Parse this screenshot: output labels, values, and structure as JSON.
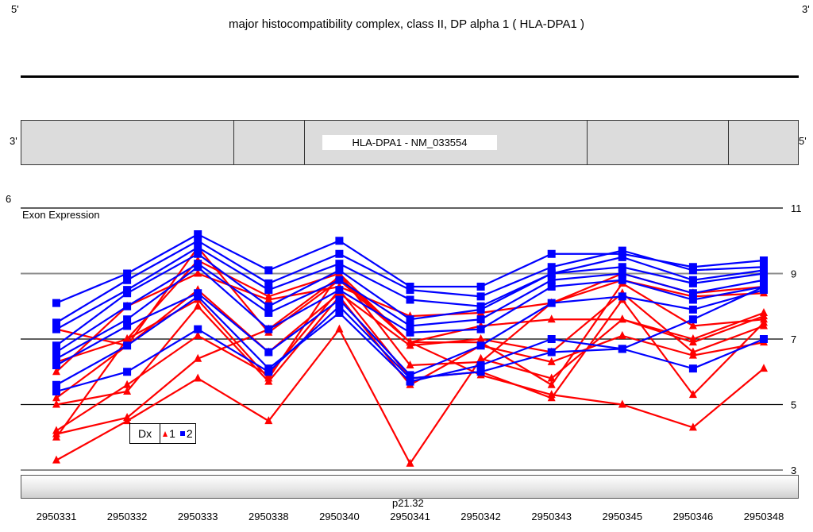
{
  "page": {
    "corner_left": "5'",
    "corner_right": "3'",
    "gene_title": "major histocompatibility complex, class II, DP alpha 1  ( HLA-DPA1 )",
    "transcript_label": "HLA-DPA1 - NM_033554",
    "strand_left": "3'",
    "strand_right": "5'",
    "band_label": "p21.32"
  },
  "chart_data": {
    "type": "line",
    "ylabel": "Exon Expression",
    "left_axis_label": "6",
    "ylim": [
      3,
      11
    ],
    "yticks": [
      3,
      5,
      7,
      9,
      11
    ],
    "grid": true,
    "legend": {
      "title": "Dx",
      "placement": "bottom-left",
      "entries": [
        "1",
        "2"
      ]
    },
    "categories": [
      "2950331",
      "2950332",
      "2950333",
      "2950338",
      "2950340",
      "2950341",
      "2950342",
      "2950343",
      "2950345",
      "2950346",
      "2950348"
    ],
    "series": [
      {
        "name": "1",
        "color": "#ff0000",
        "marker": "triangle",
        "values": [
          7.3,
          6.8,
          9.8,
          7.2,
          8.8,
          6.9,
          6.9,
          5.6,
          8.7,
          7.4,
          7.6
        ]
      },
      {
        "name": "1",
        "color": "#ff0000",
        "marker": "triangle",
        "values": [
          6.3,
          7.0,
          9.4,
          8.3,
          9.0,
          6.9,
          7.4,
          7.6,
          7.6,
          7.0,
          7.8
        ]
      },
      {
        "name": "1",
        "color": "#ff0000",
        "marker": "triangle",
        "values": [
          6.0,
          8.0,
          9.0,
          8.2,
          8.6,
          7.7,
          7.8,
          8.1,
          9.0,
          8.4,
          8.6
        ]
      },
      {
        "name": "1",
        "color": "#ff0000",
        "marker": "triangle",
        "values": [
          5.2,
          6.8,
          8.5,
          6.6,
          8.4,
          6.8,
          7.0,
          6.6,
          8.4,
          6.6,
          7.4
        ]
      },
      {
        "name": "1",
        "color": "#ff0000",
        "marker": "triangle",
        "values": [
          4.0,
          7.0,
          8.2,
          5.8,
          9.0,
          6.2,
          6.3,
          8.1,
          8.8,
          8.3,
          8.4
        ]
      },
      {
        "name": "1",
        "color": "#ff0000",
        "marker": "triangle",
        "values": [
          5.0,
          5.4,
          8.0,
          5.7,
          8.3,
          5.6,
          6.8,
          6.3,
          7.1,
          6.5,
          6.9
        ]
      },
      {
        "name": "1",
        "color": "#ff0000",
        "marker": "triangle",
        "values": [
          4.2,
          5.6,
          7.1,
          5.9,
          8.5,
          5.8,
          6.0,
          5.2,
          8.2,
          5.3,
          7.5
        ]
      },
      {
        "name": "1",
        "color": "#ff0000",
        "marker": "triangle",
        "values": [
          4.1,
          4.6,
          6.4,
          7.3,
          8.9,
          6.9,
          5.9,
          5.3,
          5.0,
          4.3,
          6.1
        ]
      },
      {
        "name": "1",
        "color": "#ff0000",
        "marker": "triangle",
        "values": [
          3.3,
          4.5,
          5.8,
          4.5,
          7.3,
          3.2,
          6.4,
          5.8,
          7.6,
          6.9,
          7.7
        ]
      },
      {
        "name": "2",
        "color": "#0000ff",
        "marker": "square",
        "values": [
          8.1,
          9.0,
          10.2,
          9.1,
          10.0,
          8.6,
          8.6,
          9.6,
          9.6,
          9.2,
          9.4
        ]
      },
      {
        "name": "2",
        "color": "#0000ff",
        "marker": "square",
        "values": [
          7.5,
          8.8,
          10.0,
          8.7,
          9.6,
          8.5,
          8.3,
          9.2,
          9.7,
          9.1,
          9.2
        ]
      },
      {
        "name": "2",
        "color": "#0000ff",
        "marker": "square",
        "values": [
          7.3,
          8.5,
          9.8,
          8.5,
          9.3,
          8.2,
          8.0,
          9.0,
          9.5,
          8.8,
          9.1
        ]
      },
      {
        "name": "2",
        "color": "#0000ff",
        "marker": "square",
        "values": [
          6.8,
          8.4,
          9.6,
          8.0,
          9.1,
          7.6,
          7.9,
          9.0,
          9.2,
          8.7,
          9.0
        ]
      },
      {
        "name": "2",
        "color": "#0000ff",
        "marker": "square",
        "values": [
          6.6,
          8.0,
          9.3,
          7.8,
          8.8,
          7.4,
          7.6,
          8.8,
          9.0,
          8.4,
          8.8
        ]
      },
      {
        "name": "2",
        "color": "#0000ff",
        "marker": "square",
        "values": [
          6.4,
          7.6,
          9.2,
          7.3,
          8.5,
          7.2,
          7.3,
          8.6,
          8.8,
          8.2,
          8.6
        ]
      },
      {
        "name": "2",
        "color": "#0000ff",
        "marker": "square",
        "values": [
          6.2,
          7.4,
          8.4,
          6.6,
          8.2,
          5.9,
          6.8,
          8.1,
          8.3,
          7.9,
          8.5
        ]
      },
      {
        "name": "2",
        "color": "#0000ff",
        "marker": "square",
        "values": [
          5.6,
          6.8,
          8.3,
          6.1,
          7.8,
          5.7,
          6.2,
          7.0,
          6.7,
          7.6,
          8.6
        ]
      },
      {
        "name": "2",
        "color": "#0000ff",
        "marker": "square",
        "values": [
          5.4,
          6.0,
          7.3,
          6.0,
          8.0,
          5.8,
          6.0,
          6.6,
          6.7,
          6.1,
          7.0
        ]
      }
    ]
  }
}
